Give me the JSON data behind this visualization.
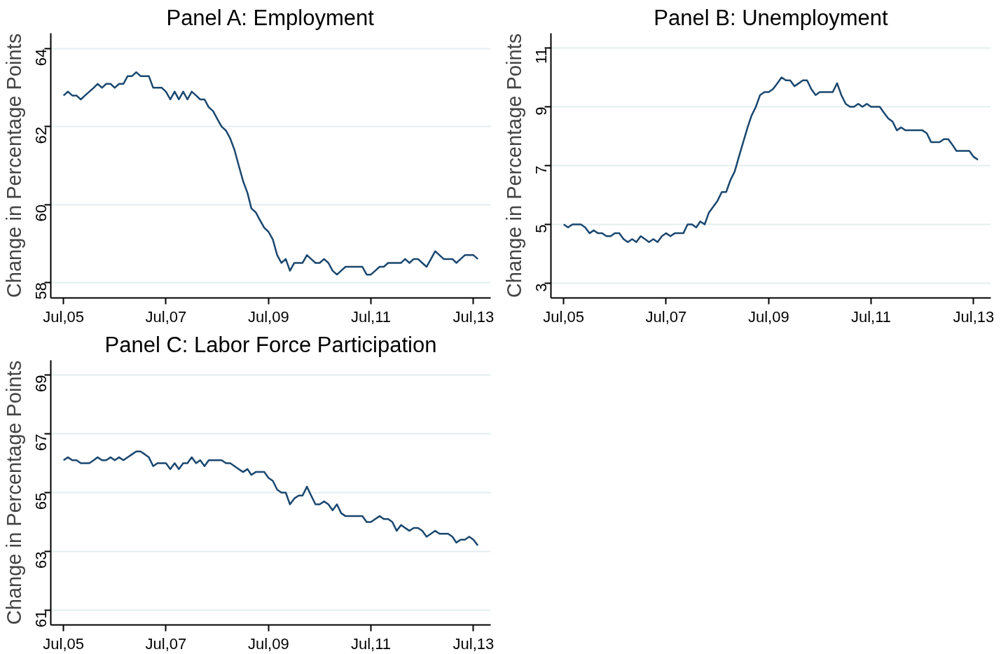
{
  "chart_data": [
    {
      "type": "line",
      "title": "Panel A: Employment",
      "ylabel": "Change in Percentage Points",
      "grid": "y",
      "marker": "none",
      "line_style": "solid",
      "x": [
        "2005-07",
        "2005-08",
        "2005-09",
        "2005-10",
        "2005-11",
        "2005-12",
        "2006-01",
        "2006-02",
        "2006-03",
        "2006-04",
        "2006-05",
        "2006-06",
        "2006-07",
        "2006-08",
        "2006-09",
        "2006-10",
        "2006-11",
        "2006-12",
        "2007-01",
        "2007-02",
        "2007-03",
        "2007-04",
        "2007-05",
        "2007-06",
        "2007-07",
        "2007-08",
        "2007-09",
        "2007-10",
        "2007-11",
        "2007-12",
        "2008-01",
        "2008-02",
        "2008-03",
        "2008-04",
        "2008-05",
        "2008-06",
        "2008-07",
        "2008-08",
        "2008-09",
        "2008-10",
        "2008-11",
        "2008-12",
        "2009-01",
        "2009-02",
        "2009-03",
        "2009-04",
        "2009-05",
        "2009-06",
        "2009-07",
        "2009-08",
        "2009-09",
        "2009-10",
        "2009-11",
        "2009-12",
        "2010-01",
        "2010-02",
        "2010-03",
        "2010-04",
        "2010-05",
        "2010-06",
        "2010-07",
        "2010-08",
        "2010-09",
        "2010-10",
        "2010-11",
        "2010-12",
        "2011-01",
        "2011-02",
        "2011-03",
        "2011-04",
        "2011-05",
        "2011-06",
        "2011-07",
        "2011-08",
        "2011-09",
        "2011-10",
        "2011-11",
        "2011-12",
        "2012-01",
        "2012-02",
        "2012-03",
        "2012-04",
        "2012-05",
        "2012-06",
        "2012-07",
        "2012-08",
        "2012-09",
        "2012-10",
        "2012-11",
        "2012-12",
        "2013-01",
        "2013-02",
        "2013-03",
        "2013-04",
        "2013-05",
        "2013-06",
        "2013-07",
        "2013-08"
      ],
      "series": [
        {
          "color": "#1a476f",
          "values": [
            62.8,
            62.9,
            62.8,
            62.8,
            62.7,
            62.8,
            62.9,
            63.0,
            63.1,
            63.0,
            63.1,
            63.1,
            63.0,
            63.1,
            63.1,
            63.3,
            63.3,
            63.4,
            63.3,
            63.3,
            63.3,
            63.0,
            63.0,
            63.0,
            62.9,
            62.7,
            62.9,
            62.7,
            62.9,
            62.7,
            62.9,
            62.8,
            62.7,
            62.7,
            62.5,
            62.4,
            62.2,
            62.0,
            61.9,
            61.7,
            61.4,
            61.0,
            60.6,
            60.3,
            59.9,
            59.8,
            59.6,
            59.4,
            59.3,
            59.1,
            58.7,
            58.5,
            58.6,
            58.3,
            58.5,
            58.5,
            58.5,
            58.7,
            58.6,
            58.5,
            58.5,
            58.6,
            58.5,
            58.3,
            58.2,
            58.3,
            58.4,
            58.4,
            58.4,
            58.4,
            58.4,
            58.2,
            58.2,
            58.3,
            58.4,
            58.4,
            58.5,
            58.5,
            58.5,
            58.5,
            58.6,
            58.5,
            58.6,
            58.6,
            58.5,
            58.4,
            58.6,
            58.8,
            58.7,
            58.6,
            58.6,
            58.6,
            58.5,
            58.6,
            58.7,
            58.7,
            58.7,
            58.6
          ]
        }
      ],
      "xlim": [
        "2005-04",
        "2013-11"
      ],
      "xticks": [
        {
          "value": "2005-07",
          "label": "Jul,05"
        },
        {
          "value": "2007-07",
          "label": "Jul,07"
        },
        {
          "value": "2009-07",
          "label": "Jul,09"
        },
        {
          "value": "2011-07",
          "label": "Jul,11"
        },
        {
          "value": "2013-07",
          "label": "Jul,13"
        }
      ],
      "ylim": [
        57.6,
        64.4
      ],
      "yticks": [
        58,
        60,
        62,
        64
      ]
    },
    {
      "type": "line",
      "title": "Panel B: Unemployment",
      "ylabel": "Change in Percentage Points",
      "grid": "y",
      "marker": "none",
      "line_style": "solid",
      "x": [
        "2005-07",
        "2005-08",
        "2005-09",
        "2005-10",
        "2005-11",
        "2005-12",
        "2006-01",
        "2006-02",
        "2006-03",
        "2006-04",
        "2006-05",
        "2006-06",
        "2006-07",
        "2006-08",
        "2006-09",
        "2006-10",
        "2006-11",
        "2006-12",
        "2007-01",
        "2007-02",
        "2007-03",
        "2007-04",
        "2007-05",
        "2007-06",
        "2007-07",
        "2007-08",
        "2007-09",
        "2007-10",
        "2007-11",
        "2007-12",
        "2008-01",
        "2008-02",
        "2008-03",
        "2008-04",
        "2008-05",
        "2008-06",
        "2008-07",
        "2008-08",
        "2008-09",
        "2008-10",
        "2008-11",
        "2008-12",
        "2009-01",
        "2009-02",
        "2009-03",
        "2009-04",
        "2009-05",
        "2009-06",
        "2009-07",
        "2009-08",
        "2009-09",
        "2009-10",
        "2009-11",
        "2009-12",
        "2010-01",
        "2010-02",
        "2010-03",
        "2010-04",
        "2010-05",
        "2010-06",
        "2010-07",
        "2010-08",
        "2010-09",
        "2010-10",
        "2010-11",
        "2010-12",
        "2011-01",
        "2011-02",
        "2011-03",
        "2011-04",
        "2011-05",
        "2011-06",
        "2011-07",
        "2011-08",
        "2011-09",
        "2011-10",
        "2011-11",
        "2011-12",
        "2012-01",
        "2012-02",
        "2012-03",
        "2012-04",
        "2012-05",
        "2012-06",
        "2012-07",
        "2012-08",
        "2012-09",
        "2012-10",
        "2012-11",
        "2012-12",
        "2013-01",
        "2013-02",
        "2013-03",
        "2013-04",
        "2013-05",
        "2013-06",
        "2013-07",
        "2013-08"
      ],
      "series": [
        {
          "color": "#1a476f",
          "values": [
            5.0,
            4.9,
            5.0,
            5.0,
            5.0,
            4.9,
            4.7,
            4.8,
            4.7,
            4.7,
            4.6,
            4.6,
            4.7,
            4.7,
            4.5,
            4.4,
            4.5,
            4.4,
            4.6,
            4.5,
            4.4,
            4.5,
            4.4,
            4.6,
            4.7,
            4.6,
            4.7,
            4.7,
            4.7,
            5.0,
            5.0,
            4.9,
            5.1,
            5.0,
            5.4,
            5.6,
            5.8,
            6.1,
            6.1,
            6.5,
            6.8,
            7.3,
            7.8,
            8.3,
            8.7,
            9.0,
            9.4,
            9.5,
            9.5,
            9.6,
            9.8,
            10.0,
            9.9,
            9.9,
            9.7,
            9.8,
            9.9,
            9.9,
            9.6,
            9.4,
            9.5,
            9.5,
            9.5,
            9.5,
            9.8,
            9.4,
            9.1,
            9.0,
            9.0,
            9.1,
            9.0,
            9.1,
            9.0,
            9.0,
            9.0,
            8.8,
            8.6,
            8.5,
            8.2,
            8.3,
            8.2,
            8.2,
            8.2,
            8.2,
            8.2,
            8.1,
            7.8,
            7.8,
            7.8,
            7.9,
            7.9,
            7.7,
            7.5,
            7.5,
            7.5,
            7.5,
            7.3,
            7.2
          ]
        }
      ],
      "xlim": [
        "2005-04",
        "2013-11"
      ],
      "xticks": [
        {
          "value": "2005-07",
          "label": "Jul,05"
        },
        {
          "value": "2007-07",
          "label": "Jul,07"
        },
        {
          "value": "2009-07",
          "label": "Jul,09"
        },
        {
          "value": "2011-07",
          "label": "Jul,11"
        },
        {
          "value": "2013-07",
          "label": "Jul,13"
        }
      ],
      "ylim": [
        2.5,
        11.5
      ],
      "yticks": [
        3,
        5,
        7,
        9,
        11
      ]
    },
    {
      "type": "line",
      "title": "Panel C: Labor Force Participation",
      "ylabel": "Change in Percentage Points",
      "grid": "y",
      "marker": "none",
      "line_style": "solid",
      "x": [
        "2005-07",
        "2005-08",
        "2005-09",
        "2005-10",
        "2005-11",
        "2005-12",
        "2006-01",
        "2006-02",
        "2006-03",
        "2006-04",
        "2006-05",
        "2006-06",
        "2006-07",
        "2006-08",
        "2006-09",
        "2006-10",
        "2006-11",
        "2006-12",
        "2007-01",
        "2007-02",
        "2007-03",
        "2007-04",
        "2007-05",
        "2007-06",
        "2007-07",
        "2007-08",
        "2007-09",
        "2007-10",
        "2007-11",
        "2007-12",
        "2008-01",
        "2008-02",
        "2008-03",
        "2008-04",
        "2008-05",
        "2008-06",
        "2008-07",
        "2008-08",
        "2008-09",
        "2008-10",
        "2008-11",
        "2008-12",
        "2009-01",
        "2009-02",
        "2009-03",
        "2009-04",
        "2009-05",
        "2009-06",
        "2009-07",
        "2009-08",
        "2009-09",
        "2009-10",
        "2009-11",
        "2009-12",
        "2010-01",
        "2010-02",
        "2010-03",
        "2010-04",
        "2010-05",
        "2010-06",
        "2010-07",
        "2010-08",
        "2010-09",
        "2010-10",
        "2010-11",
        "2010-12",
        "2011-01",
        "2011-02",
        "2011-03",
        "2011-04",
        "2011-05",
        "2011-06",
        "2011-07",
        "2011-08",
        "2011-09",
        "2011-10",
        "2011-11",
        "2011-12",
        "2012-01",
        "2012-02",
        "2012-03",
        "2012-04",
        "2012-05",
        "2012-06",
        "2012-07",
        "2012-08",
        "2012-09",
        "2012-10",
        "2012-11",
        "2012-12",
        "2013-01",
        "2013-02",
        "2013-03",
        "2013-04",
        "2013-05",
        "2013-06",
        "2013-07",
        "2013-08"
      ],
      "series": [
        {
          "color": "#1a476f",
          "values": [
            66.1,
            66.2,
            66.1,
            66.1,
            66.0,
            66.0,
            66.0,
            66.1,
            66.2,
            66.1,
            66.1,
            66.2,
            66.1,
            66.2,
            66.1,
            66.2,
            66.3,
            66.4,
            66.4,
            66.3,
            66.2,
            65.9,
            66.0,
            66.0,
            66.0,
            65.8,
            66.0,
            65.8,
            66.0,
            66.0,
            66.2,
            66.0,
            66.1,
            65.9,
            66.1,
            66.1,
            66.1,
            66.1,
            66.0,
            66.0,
            65.9,
            65.8,
            65.7,
            65.8,
            65.6,
            65.7,
            65.7,
            65.7,
            65.5,
            65.4,
            65.1,
            65.0,
            65.0,
            64.6,
            64.8,
            64.9,
            64.9,
            65.2,
            64.9,
            64.6,
            64.6,
            64.7,
            64.6,
            64.4,
            64.6,
            64.3,
            64.2,
            64.2,
            64.2,
            64.2,
            64.2,
            64.0,
            64.0,
            64.1,
            64.2,
            64.1,
            64.1,
            64.0,
            63.7,
            63.9,
            63.8,
            63.7,
            63.8,
            63.8,
            63.7,
            63.5,
            63.6,
            63.7,
            63.6,
            63.6,
            63.6,
            63.5,
            63.3,
            63.4,
            63.4,
            63.5,
            63.4,
            63.2
          ]
        }
      ],
      "xlim": [
        "2005-04",
        "2013-11"
      ],
      "xticks": [
        {
          "value": "2005-07",
          "label": "Jul,05"
        },
        {
          "value": "2007-07",
          "label": "Jul,07"
        },
        {
          "value": "2009-07",
          "label": "Jul,09"
        },
        {
          "value": "2011-07",
          "label": "Jul,11"
        },
        {
          "value": "2013-07",
          "label": "Jul,13"
        }
      ],
      "ylim": [
        60.5,
        69.5
      ],
      "yticks": [
        61,
        63,
        65,
        67,
        69
      ]
    }
  ]
}
